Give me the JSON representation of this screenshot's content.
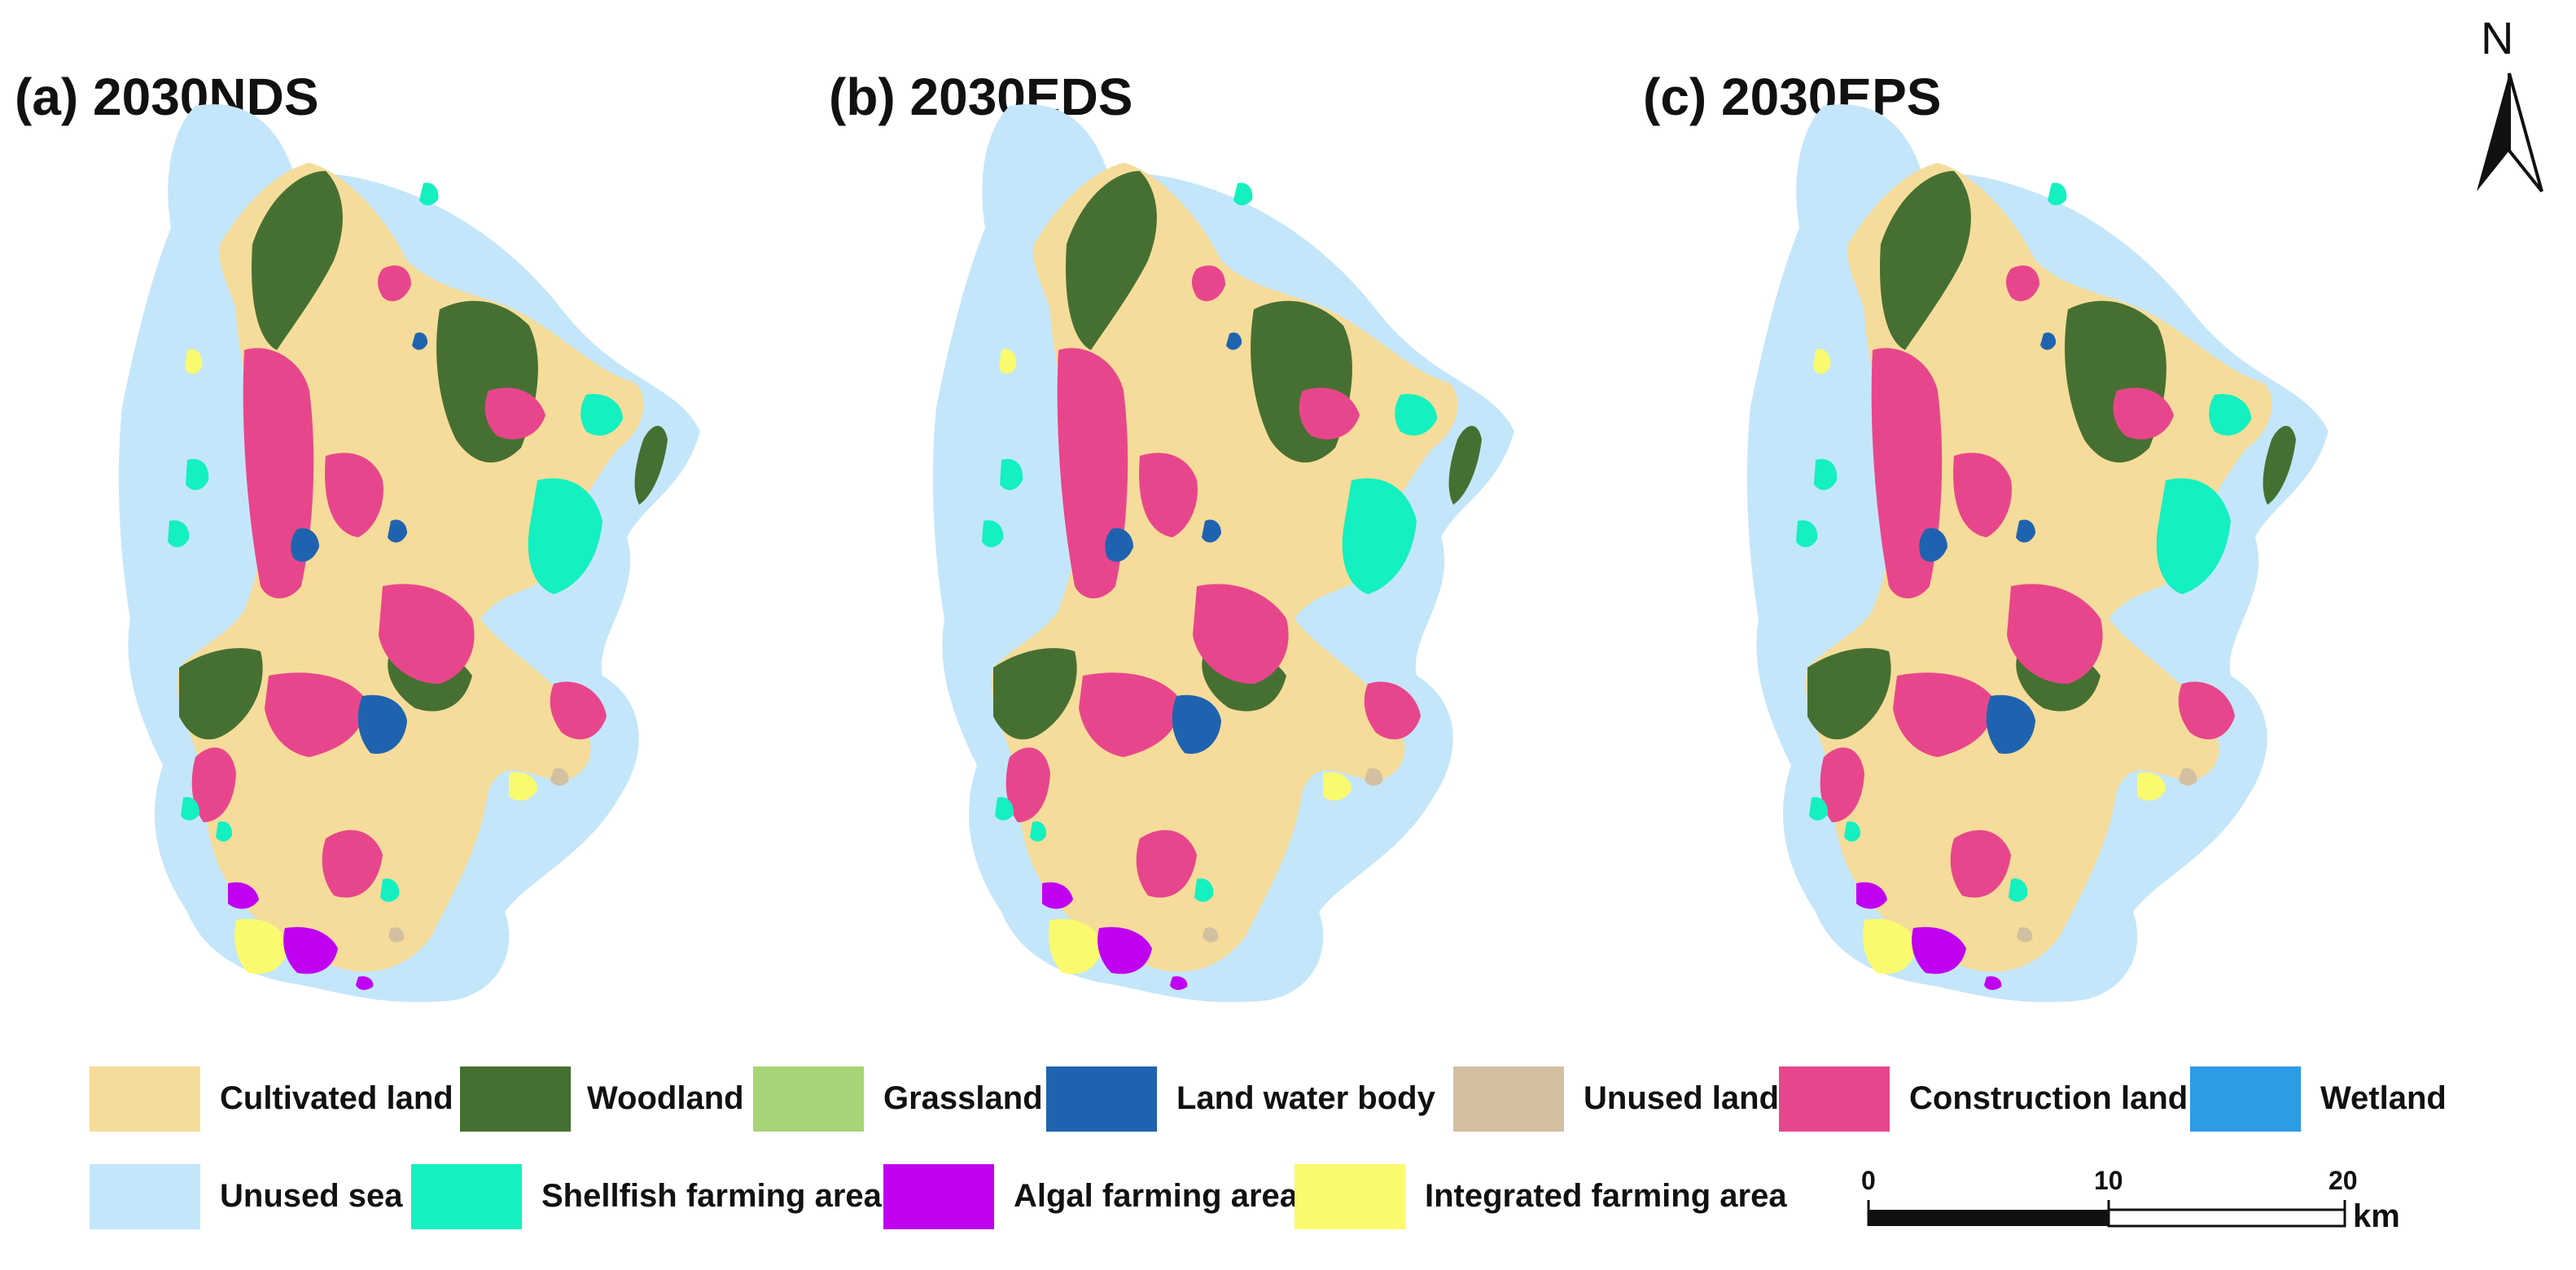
{
  "panels": [
    {
      "title": "(a) 2030NDS"
    },
    {
      "title": "(b) 2030EDS"
    },
    {
      "title": "(c) 2030EPS"
    }
  ],
  "north_arrow": {
    "label": "N"
  },
  "legend": [
    {
      "label": "Cultivated land",
      "color": "#f5dc9a"
    },
    {
      "label": "Woodland",
      "color": "#467032"
    },
    {
      "label": "Grassland",
      "color": "#a8d478"
    },
    {
      "label": "Land water body",
      "color": "#1f63b0"
    },
    {
      "label": "Unused land",
      "color": "#d2c0a0"
    },
    {
      "label": "Construction land",
      "color": "#e8468c"
    },
    {
      "label": "Wetland",
      "color": "#2d9be6"
    },
    {
      "label": "Unused sea",
      "color": "#c4e6fa"
    },
    {
      "label": "Shellfish farming area",
      "color": "#14f0c0"
    },
    {
      "label": "Algal farming area",
      "color": "#c000f0"
    },
    {
      "label": "Integrated farming area",
      "color": "#fafa6e"
    }
  ],
  "scale_bar": {
    "ticks": [
      "0",
      "10",
      "20"
    ],
    "unit": "km"
  }
}
